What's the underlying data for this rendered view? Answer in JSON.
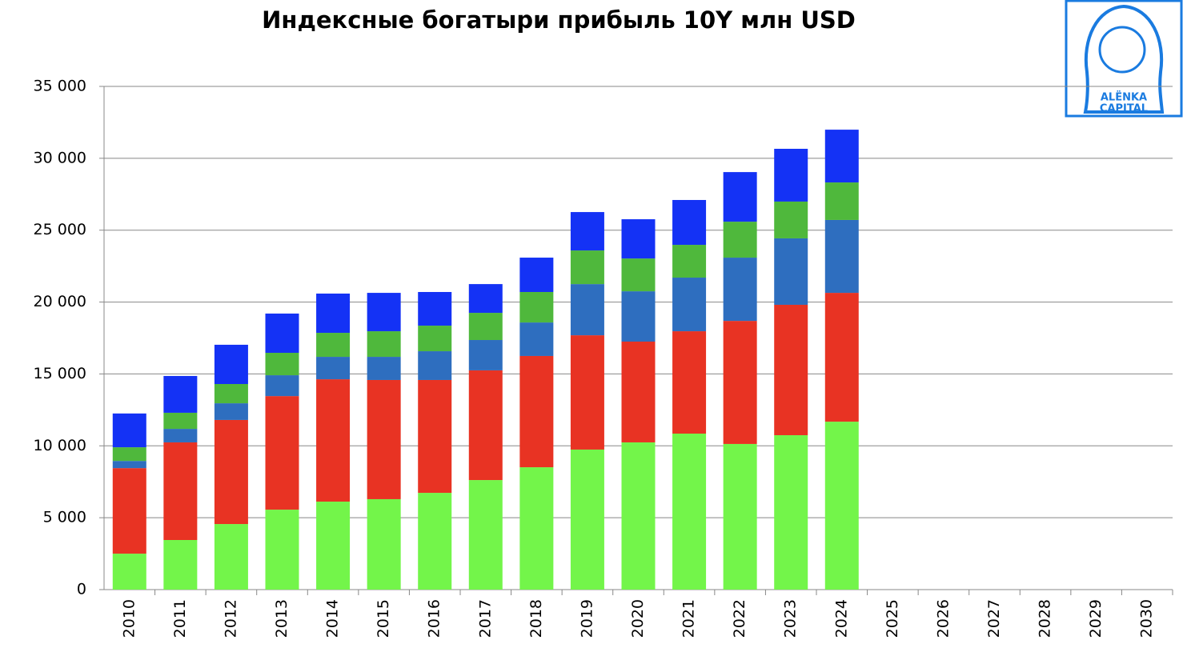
{
  "chart_data": {
    "type": "stacked-bar",
    "title": "Индексные богатыри прибыль 10Y млн USD",
    "categories": [
      "2010",
      "2011",
      "2012",
      "2013",
      "2014",
      "2015",
      "2016",
      "2017",
      "2018",
      "2019",
      "2020",
      "2021",
      "2022",
      "2023",
      "2024",
      "2025",
      "2026",
      "2027",
      "2028",
      "2029",
      "2030"
    ],
    "series": [
      {
        "color": "#73f54a",
        "values": [
          2500,
          3450,
          4560,
          5560,
          6120,
          6290,
          6730,
          7620,
          8510,
          9740,
          10240,
          10850,
          10130,
          10740,
          11680,
          null,
          null,
          null,
          null,
          null,
          null
        ]
      },
      {
        "color": "#e83323",
        "values": [
          5950,
          6790,
          7240,
          7900,
          8510,
          8290,
          7850,
          7630,
          7740,
          7950,
          7010,
          7120,
          8560,
          9070,
          8960,
          null,
          null,
          null,
          null,
          null,
          null
        ]
      },
      {
        "color": "#2e6ebf",
        "values": [
          500,
          940,
          1160,
          1450,
          1560,
          1610,
          2000,
          2110,
          2330,
          3560,
          3500,
          3730,
          4400,
          4620,
          5070,
          null,
          null,
          null,
          null,
          null,
          null
        ]
      },
      {
        "color": "#4fb83c",
        "values": [
          950,
          1120,
          1340,
          1560,
          1670,
          1780,
          1780,
          1890,
          2120,
          2340,
          2280,
          2280,
          2500,
          2560,
          2610,
          null,
          null,
          null,
          null,
          null,
          null
        ]
      },
      {
        "color": "#1432f5",
        "values": [
          2350,
          2560,
          2730,
          2730,
          2730,
          2670,
          2340,
          2000,
          2390,
          2670,
          2730,
          3120,
          3450,
          3670,
          3670,
          null,
          null,
          null,
          null,
          null,
          null
        ]
      }
    ],
    "ylim": [
      0,
      35000
    ],
    "yticks": [
      0,
      {
        "value": 5000,
        "label": "5 000"
      },
      {
        "value": 10000,
        "label": "10 000"
      },
      {
        "value": 15000,
        "label": "15 000"
      },
      {
        "value": 20000,
        "label": "20 000"
      },
      {
        "value": 25000,
        "label": "25 000"
      },
      {
        "value": 30000,
        "label": "30 000"
      },
      {
        "value": 35000,
        "label": "35 000"
      }
    ],
    "grid": true
  },
  "logo": {
    "line1": "ALЁNKA",
    "line2": "CAPITAL"
  }
}
